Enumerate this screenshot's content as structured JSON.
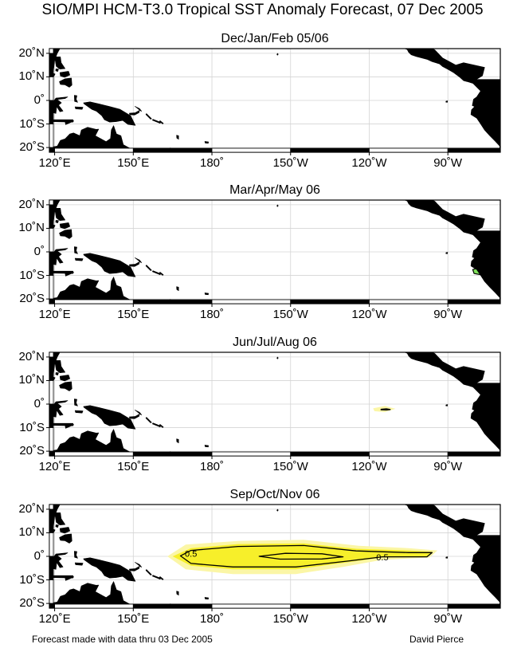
{
  "title": "SIO/MPI HCM-T3.0 Tropical SST Anomaly Forecast, 07 Dec 2005",
  "axes": {
    "lat_labels": [
      "20˚N",
      "10˚N",
      "0˚",
      "10˚S",
      "20˚S"
    ],
    "lat_values": [
      20,
      10,
      0,
      -10,
      -20
    ],
    "lon_labels": [
      "120˚E",
      "150˚E",
      "180˚",
      "150˚W",
      "120˚W",
      "90˚W"
    ],
    "lon_values": [
      120,
      150,
      180,
      210,
      240,
      270
    ],
    "lon_range": [
      118,
      290
    ],
    "lat_range": [
      -22,
      22
    ]
  },
  "colors": {
    "land": "#000000",
    "positive_anomaly": "#f7ef2a",
    "positive_anomaly_light": "#fbf6a6",
    "negative_anomaly": "#7fe05a",
    "contour": "#000000",
    "grid": "#d4d4d4"
  },
  "panels": [
    {
      "title": "Dec/Jan/Feb 05/06",
      "anomalies": [
        {
          "sign": "negative",
          "points": [
            [
              280.2,
              -3.5
            ],
            [
              284,
              -2
            ],
            [
              286,
              -3.5
            ],
            [
              283,
              -5
            ],
            [
              280.2,
              -4.6
            ]
          ]
        }
      ],
      "contour_labels": []
    },
    {
      "title": "Mar/Apr/May 06",
      "anomalies": [
        {
          "sign": "negative",
          "points": [
            [
              279.5,
              -7.5
            ],
            [
              284,
              -6
            ],
            [
              287.5,
              -8.8
            ],
            [
              284,
              -10
            ],
            [
              280,
              -9.2
            ]
          ]
        }
      ],
      "contour_labels": []
    },
    {
      "title": "Jun/Jul/Aug 06",
      "anomalies": [
        {
          "sign": "positive_light",
          "points": [
            [
              241.5,
              -1.8
            ],
            [
              246,
              -0.8
            ],
            [
              250,
              -2
            ],
            [
              246,
              -3.4
            ],
            [
              242,
              -3
            ]
          ]
        },
        {
          "sign": "contour",
          "points": [
            [
              244.5,
              -2.2
            ],
            [
              246.5,
              -2.0
            ],
            [
              248,
              -2.3
            ],
            [
              246.5,
              -2.5
            ],
            [
              244.5,
              -2.4
            ]
          ]
        }
      ],
      "contour_labels": []
    },
    {
      "title": "Sep/Oct/Nov 06",
      "anomalies": [
        {
          "sign": "positive_light",
          "points": [
            [
              163,
              0
            ],
            [
              170,
              5
            ],
            [
              190,
              6.5
            ],
            [
              215,
              7
            ],
            [
              236,
              4.5
            ],
            [
              255,
              3.5
            ],
            [
              266,
              2.5
            ],
            [
              263,
              -0.5
            ],
            [
              245,
              -1.5
            ],
            [
              230,
              -4.5
            ],
            [
              212,
              -7.5
            ],
            [
              188,
              -7.5
            ],
            [
              170,
              -5.5
            ]
          ]
        },
        {
          "sign": "positive",
          "points": [
            [
              165,
              0
            ],
            [
              172,
              3.5
            ],
            [
              190,
              5.2
            ],
            [
              215,
              5.5
            ],
            [
              235,
              3.2
            ],
            [
              255,
              2.5
            ],
            [
              264,
              2
            ],
            [
              262,
              -0.2
            ],
            [
              245,
              -0.5
            ],
            [
              232,
              -2.5
            ],
            [
              212,
              -5.5
            ],
            [
              188,
              -5.5
            ],
            [
              172,
              -4
            ]
          ]
        },
        {
          "sign": "contour",
          "points": [
            [
              168,
              0.2
            ],
            [
              172,
              2.5
            ],
            [
              190,
              4.2
            ],
            [
              215,
              4.6
            ],
            [
              235,
              2.3
            ],
            [
              255,
              1.6
            ],
            [
              264,
              1.6
            ],
            [
              262,
              -0.2
            ],
            [
              245,
              -0.2
            ],
            [
              232,
              -2
            ],
            [
              212,
              -4.5
            ],
            [
              188,
              -4.5
            ],
            [
              172,
              -3
            ]
          ]
        },
        {
          "sign": "contour",
          "points": [
            [
              198,
              0
            ],
            [
              208,
              1.3
            ],
            [
              222,
              1.1
            ],
            [
              230,
              -0.2
            ],
            [
              222,
              -1.1
            ],
            [
              206,
              -1.2
            ]
          ]
        }
      ],
      "contour_labels": [
        {
          "text": "0.5",
          "lon": 172,
          "lat": 1.2
        },
        {
          "text": "0.5",
          "lon": 245,
          "lat": -0.4
        }
      ]
    }
  ],
  "land": [
    {
      "name": "asia-mainland",
      "points": [
        [
          118,
          22
        ],
        [
          122,
          22
        ],
        [
          121,
          20
        ],
        [
          120,
          17
        ],
        [
          119.5,
          12
        ],
        [
          118,
          10
        ]
      ]
    },
    {
      "name": "taiwan",
      "points": [
        [
          120.6,
          22
        ],
        [
          121.8,
          22
        ],
        [
          121.2,
          21.6
        ]
      ]
    },
    {
      "name": "luzon",
      "points": [
        [
          120,
          18.5
        ],
        [
          122.2,
          18.5
        ],
        [
          122.5,
          16
        ],
        [
          124,
          13.5
        ],
        [
          122,
          13.3
        ],
        [
          120.6,
          14.5
        ],
        [
          120.3,
          16.5
        ]
      ]
    },
    {
      "name": "mindoro",
      "points": [
        [
          120.5,
          13.4
        ],
        [
          121.5,
          13.3
        ],
        [
          121.2,
          12.3
        ],
        [
          120.4,
          12.6
        ]
      ]
    },
    {
      "name": "palawan",
      "points": [
        [
          117.5,
          8.5
        ],
        [
          119.5,
          11.5
        ],
        [
          120.2,
          11.2
        ],
        [
          118.5,
          8
        ]
      ]
    },
    {
      "name": "visayas",
      "points": [
        [
          122,
          11.8
        ],
        [
          125.3,
          12.4
        ],
        [
          125.8,
          10.8
        ],
        [
          123.8,
          9.8
        ],
        [
          122.2,
          10.4
        ]
      ]
    },
    {
      "name": "mindanao",
      "points": [
        [
          121.8,
          8
        ],
        [
          124,
          9.2
        ],
        [
          126.4,
          9.5
        ],
        [
          126.6,
          6.5
        ],
        [
          125.6,
          5.6
        ],
        [
          124,
          6.6
        ],
        [
          122.2,
          6.8
        ]
      ]
    },
    {
      "name": "borneo",
      "points": [
        [
          118,
          7
        ],
        [
          119.3,
          5
        ],
        [
          118.5,
          3
        ],
        [
          117.6,
          0.3
        ],
        [
          116.5,
          -3.5
        ],
        [
          118,
          -3.5
        ]
      ]
    },
    {
      "name": "sulawesi",
      "points": [
        [
          119.4,
          -0.5
        ],
        [
          120.5,
          1
        ],
        [
          125,
          1.5
        ],
        [
          124,
          0.8
        ],
        [
          121,
          0.4
        ],
        [
          122.6,
          -1
        ],
        [
          121.5,
          -2
        ],
        [
          123.2,
          -4.5
        ],
        [
          122,
          -4.8
        ],
        [
          120.8,
          -2.6
        ],
        [
          120.5,
          -5.5
        ],
        [
          119.4,
          -5.2
        ]
      ]
    },
    {
      "name": "halmahera",
      "points": [
        [
          127.5,
          2.2
        ],
        [
          128.5,
          2
        ],
        [
          128.2,
          0.5
        ],
        [
          128.8,
          -0.8
        ],
        [
          127.6,
          -0.4
        ]
      ]
    },
    {
      "name": "seram",
      "points": [
        [
          127.8,
          -2.7
        ],
        [
          130.8,
          -2.9
        ],
        [
          130.5,
          -3.8
        ],
        [
          128,
          -3.6
        ]
      ]
    },
    {
      "name": "lesser-sunda",
      "points": [
        [
          118,
          -8.2
        ],
        [
          127,
          -8.2
        ],
        [
          127,
          -9.2
        ],
        [
          118,
          -9
        ]
      ]
    },
    {
      "name": "timor",
      "points": [
        [
          124,
          -9
        ],
        [
          127,
          -8.4
        ],
        [
          127.3,
          -8.8
        ],
        [
          124.2,
          -10.3
        ]
      ]
    },
    {
      "name": "new-guinea",
      "points": [
        [
          131,
          -1
        ],
        [
          133.5,
          -0.6
        ],
        [
          137,
          -1.5
        ],
        [
          141,
          -2.6
        ],
        [
          145,
          -3.8
        ],
        [
          147.5,
          -5.5
        ],
        [
          149,
          -6.5
        ],
        [
          150.8,
          -10.6
        ],
        [
          148,
          -10.2
        ],
        [
          146,
          -8.5
        ],
        [
          143.5,
          -9
        ],
        [
          141,
          -9.2
        ],
        [
          139,
          -8.2
        ],
        [
          138,
          -6.5
        ],
        [
          136,
          -4.6
        ],
        [
          134.2,
          -3.8
        ],
        [
          132.2,
          -2.2
        ],
        [
          131.2,
          -1.4
        ]
      ]
    },
    {
      "name": "new-britain",
      "points": [
        [
          148.5,
          -5.4
        ],
        [
          150.8,
          -5.2
        ],
        [
          152.4,
          -4.2
        ],
        [
          152.2,
          -5.2
        ],
        [
          150.5,
          -6.2
        ],
        [
          148.6,
          -6.1
        ]
      ]
    },
    {
      "name": "new-ireland",
      "points": [
        [
          150.6,
          -2.5
        ],
        [
          152.4,
          -3.5
        ],
        [
          153.2,
          -4.6
        ],
        [
          152.6,
          -4.3
        ],
        [
          151.2,
          -3
        ]
      ]
    },
    {
      "name": "solomons-a",
      "points": [
        [
          155,
          -5.6
        ],
        [
          157,
          -7.8
        ],
        [
          156.6,
          -8
        ],
        [
          154.8,
          -6
        ]
      ]
    },
    {
      "name": "solomons-b",
      "points": [
        [
          157.5,
          -8
        ],
        [
          160.5,
          -9.3
        ],
        [
          160.2,
          -9.7
        ],
        [
          157.3,
          -8.4
        ]
      ]
    },
    {
      "name": "solomons-c",
      "points": [
        [
          160.2,
          -8.6
        ],
        [
          161.5,
          -9.7
        ],
        [
          161.2,
          -10
        ],
        [
          160,
          -8.9
        ]
      ]
    },
    {
      "name": "vanuatu",
      "points": [
        [
          166.5,
          -14.8
        ],
        [
          167.3,
          -15
        ],
        [
          167.3,
          -16.5
        ],
        [
          166.6,
          -16
        ]
      ]
    },
    {
      "name": "new-caledonia",
      "points": [
        [
          164,
          -20.2
        ],
        [
          166,
          -21.3
        ],
        [
          167,
          -22
        ],
        [
          165.8,
          -22
        ],
        [
          164,
          -20.8
        ]
      ]
    },
    {
      "name": "fiji",
      "points": [
        [
          177.3,
          -17.4
        ],
        [
          178.7,
          -17.6
        ],
        [
          178.6,
          -18.2
        ],
        [
          177.4,
          -18.1
        ]
      ]
    },
    {
      "name": "australia",
      "points": [
        [
          118,
          -20
        ],
        [
          121,
          -19.4
        ],
        [
          122.2,
          -17
        ],
        [
          124,
          -16.3
        ],
        [
          125.8,
          -14.2
        ],
        [
          127.2,
          -13.8
        ],
        [
          129.6,
          -15
        ],
        [
          130.2,
          -12.6
        ],
        [
          132.6,
          -11.4
        ],
        [
          135.8,
          -12.3
        ],
        [
          136.8,
          -12.2
        ],
        [
          135.5,
          -15
        ],
        [
          137.5,
          -16.2
        ],
        [
          139.6,
          -17.5
        ],
        [
          141.3,
          -16.2
        ],
        [
          141.6,
          -12.6
        ],
        [
          142.5,
          -10.7
        ],
        [
          143.6,
          -14.2
        ],
        [
          145.3,
          -15
        ],
        [
          146.2,
          -18.8
        ],
        [
          148.8,
          -20.4
        ],
        [
          149.6,
          -22
        ],
        [
          118,
          -22
        ]
      ]
    },
    {
      "name": "hawaii",
      "points": [
        [
          204.8,
          19.5
        ],
        [
          205,
          19.2
        ],
        [
          205.3,
          19.6
        ],
        [
          205,
          20
        ]
      ]
    },
    {
      "name": "north-america",
      "points": [
        [
          253.5,
          22
        ],
        [
          254.5,
          21.6
        ],
        [
          255,
          20.5
        ],
        [
          256,
          19.4
        ],
        [
          258,
          18.6
        ],
        [
          262.2,
          17.4
        ],
        [
          264,
          16.5
        ],
        [
          265.4,
          16
        ],
        [
          266.8,
          15.5
        ],
        [
          268,
          14.4
        ],
        [
          270,
          13.2
        ],
        [
          272.2,
          11.8
        ],
        [
          274.6,
          9.8
        ],
        [
          276,
          8.4
        ],
        [
          277.4,
          8
        ],
        [
          279.3,
          7.3
        ],
        [
          280.5,
          8
        ],
        [
          281,
          9
        ],
        [
          283.2,
          10.5
        ],
        [
          284,
          14
        ],
        [
          276,
          16
        ],
        [
          273,
          15
        ],
        [
          268,
          18
        ],
        [
          265,
          21.5
        ],
        [
          264,
          22
        ]
      ]
    },
    {
      "name": "south-america",
      "points": [
        [
          277.6,
          8.9
        ],
        [
          279.6,
          7.2
        ],
        [
          282.5,
          4
        ],
        [
          281,
          1.5
        ],
        [
          279.8,
          0.5
        ],
        [
          279.3,
          -2.2
        ],
        [
          280.2,
          -2.6
        ],
        [
          279,
          -4
        ],
        [
          278.8,
          -6
        ],
        [
          281,
          -7.5
        ],
        [
          282.5,
          -10
        ],
        [
          284,
          -12.6
        ],
        [
          286,
          -15
        ],
        [
          288.2,
          -17.5
        ],
        [
          289.8,
          -19.4
        ],
        [
          289.8,
          -22
        ],
        [
          290,
          -22
        ],
        [
          290,
          8.9
        ]
      ]
    },
    {
      "name": "galapagos",
      "points": [
        [
          269.3,
          -0.3
        ],
        [
          269.9,
          -0.2
        ],
        [
          269.8,
          -0.8
        ],
        [
          269.2,
          -0.7
        ]
      ]
    }
  ],
  "footer": {
    "left": "Forecast made with data thru 03 Dec 2005",
    "right": "David Pierce"
  }
}
